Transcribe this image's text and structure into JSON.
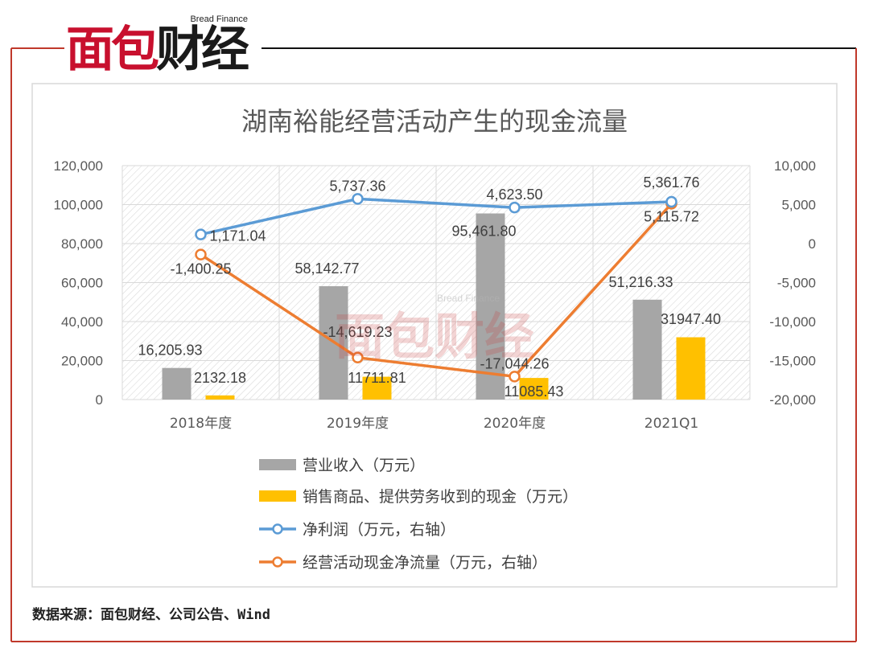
{
  "logo": {
    "english": "Bread Finance",
    "chinese_red": "面包",
    "chinese_black": "财经"
  },
  "watermark": {
    "english": "Bread Finance",
    "chinese": "面包财经"
  },
  "source_note": "数据来源：面包财经、公司公告、Wind",
  "colors": {
    "frame": "#c0392b",
    "bars_revenue": "#a6a6a6",
    "bars_cash": "#ffc000",
    "line_profit": "#5b9bd5",
    "line_cashflow": "#ed7d31"
  },
  "chart_data": {
    "type": "bar",
    "title": "湖南裕能经营活动产生的现金流量",
    "categories": [
      "2018年度",
      "2019年度",
      "2020年度",
      "2021Q1"
    ],
    "y_left": {
      "ylim": [
        0,
        120000
      ],
      "ticks": [
        "120,000",
        "100,000",
        "80,000",
        "60,000",
        "40,000",
        "20,000",
        "0"
      ]
    },
    "y_right": {
      "ylim": [
        -20000,
        10000
      ],
      "ticks": [
        "10,000",
        "5,000",
        "0",
        "-5,000",
        "-10,000",
        "-15,000",
        "-20,000"
      ]
    },
    "grid": true,
    "legend_position": "bottom",
    "series": [
      {
        "name": "营业收入（万元）",
        "kind": "bar",
        "axis": "left",
        "values": [
          16205.93,
          58142.77,
          95461.8,
          51216.33
        ],
        "labels": [
          "16,205.93",
          "58,142.77",
          "95,461.80",
          "51,216.33"
        ]
      },
      {
        "name": "销售商品、提供劳务收到的现金（万元）",
        "kind": "bar",
        "axis": "left",
        "values": [
          2132.18,
          11711.81,
          11085.43,
          31947.4
        ],
        "labels": [
          "2132.18",
          "11711.81",
          "11085.43",
          "31947.40"
        ]
      },
      {
        "name": "净利润（万元，右轴）",
        "kind": "line",
        "axis": "right",
        "values": [
          1171.04,
          5737.36,
          4623.5,
          5361.76
        ],
        "labels": [
          "1,171.04",
          "5,737.36",
          "4,623.50",
          "5,361.76"
        ]
      },
      {
        "name": "经营活动现金净流量（万元，右轴）",
        "kind": "line",
        "axis": "right",
        "values": [
          -1400.25,
          -14619.23,
          -17044.26,
          5115.72
        ],
        "labels": [
          "-1,400.25",
          "-14,619.23",
          "-17,044.26",
          "5,115.72"
        ]
      }
    ]
  }
}
